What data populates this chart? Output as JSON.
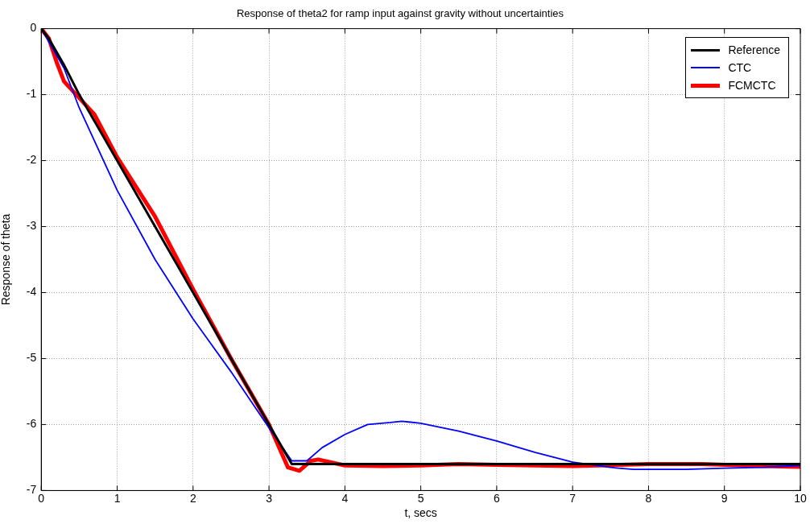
{
  "chart_data": {
    "type": "line",
    "title": "Response of theta2 for ramp input against gravity without uncertainties",
    "xlabel": "t, secs",
    "ylabel": "Response of theta",
    "xlim": [
      0,
      10
    ],
    "xticks": [
      0,
      1,
      2,
      3,
      4,
      5,
      6,
      7,
      8,
      9,
      10
    ],
    "ylim": [
      -7,
      0
    ],
    "yticks": [
      -7,
      -6,
      -5,
      -4,
      -3,
      -2,
      -1,
      0
    ],
    "grid": true,
    "legend": "top right",
    "line_style": "solid",
    "marker": "none",
    "series": [
      {
        "name": "Reference",
        "color": "#000000",
        "x": [
          0,
          0.1,
          0.3,
          0.5,
          1,
          2,
          3,
          3.3,
          10
        ],
        "values": [
          0,
          -0.15,
          -0.55,
          -1,
          -2,
          -4,
          -6,
          -6.6,
          -6.6
        ]
      },
      {
        "name": "CTC",
        "color": "#0000ff",
        "x": [
          0,
          0.3,
          0.5,
          0.8,
          1,
          1.5,
          2,
          2.5,
          3,
          3.3,
          3.5,
          3.7,
          4,
          4.3,
          4.6,
          4.75,
          5,
          5.5,
          6,
          6.5,
          7,
          7.5,
          7.8,
          8.5,
          9,
          9.5,
          10
        ],
        "values": [
          0,
          -0.6,
          -1.2,
          -1.95,
          -2.45,
          -3.5,
          -4.4,
          -5.2,
          -6.05,
          -6.55,
          -6.55,
          -6.35,
          -6.15,
          -6.0,
          -5.97,
          -5.95,
          -5.98,
          -6.1,
          -6.25,
          -6.42,
          -6.57,
          -6.65,
          -6.68,
          -6.68,
          -6.66,
          -6.65,
          -6.62
        ]
      },
      {
        "name": "FCMCTC",
        "color": "#ff0000",
        "x": [
          0,
          0.1,
          0.2,
          0.3,
          0.5,
          0.7,
          1,
          1.5,
          2,
          2.5,
          3,
          3.25,
          3.4,
          3.55,
          3.65,
          4,
          4.5,
          5,
          5.5,
          6,
          7,
          8,
          8.7,
          9.5,
          10
        ],
        "values": [
          0,
          -0.15,
          -0.5,
          -0.8,
          -1.05,
          -1.3,
          -1.95,
          -2.85,
          -3.95,
          -5.0,
          -6.0,
          -6.65,
          -6.7,
          -6.55,
          -6.53,
          -6.62,
          -6.63,
          -6.62,
          -6.6,
          -6.61,
          -6.63,
          -6.6,
          -6.6,
          -6.63,
          -6.64
        ]
      }
    ]
  }
}
